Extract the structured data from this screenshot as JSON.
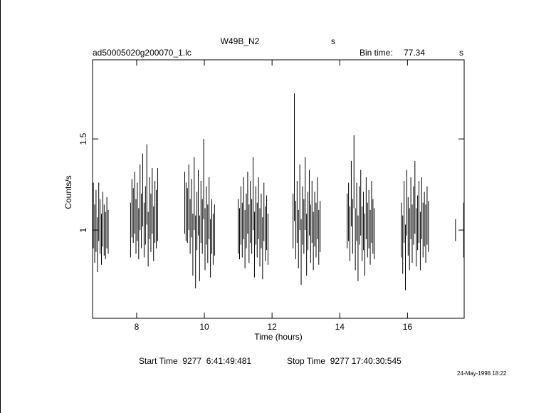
{
  "chart_data": {
    "type": "errorbar",
    "title": "W49B_N2",
    "title_unit": "s",
    "subtitle": "ad50005020g200070_1.lc",
    "bin_time_label": "Bin time:",
    "bin_time": 77.34,
    "bin_time_unit": "s",
    "xlabel": "Time (hours)",
    "ylabel": "Counts/s",
    "start_label": "Start Time  9277  6:41:49:481",
    "stop_label": "Stop Time  9277 17:40:30:545",
    "date": "24-May-1998 18:22",
    "color": "#000000",
    "xlim": [
      6.697,
      17.675
    ],
    "ylim": [
      0.516,
      1.934
    ],
    "xticks": [
      8,
      10,
      12,
      14,
      16
    ],
    "yticks": [
      1,
      1.5
    ],
    "x": [
      6.72,
      6.76,
      6.8,
      6.84,
      6.88,
      6.92,
      6.96,
      7.0,
      7.04,
      7.08,
      7.12,
      7.16,
      7.82,
      7.86,
      7.9,
      7.94,
      7.98,
      8.02,
      8.06,
      8.1,
      8.14,
      8.18,
      8.22,
      8.26,
      8.3,
      8.34,
      8.38,
      8.42,
      8.46,
      8.5,
      8.54,
      8.58,
      8.62,
      9.42,
      9.46,
      9.5,
      9.54,
      9.58,
      9.62,
      9.66,
      9.7,
      9.74,
      9.78,
      9.82,
      9.86,
      9.9,
      9.94,
      9.98,
      10.02,
      10.06,
      10.1,
      10.14,
      10.18,
      10.22,
      10.26,
      10.3,
      11.0,
      11.04,
      11.08,
      11.12,
      11.16,
      11.2,
      11.24,
      11.28,
      11.32,
      11.36,
      11.4,
      11.44,
      11.48,
      11.52,
      11.56,
      11.6,
      11.64,
      11.68,
      11.72,
      11.76,
      11.8,
      11.84,
      11.88,
      12.62,
      12.66,
      12.7,
      12.74,
      12.78,
      12.82,
      12.86,
      12.9,
      12.94,
      12.98,
      13.02,
      13.06,
      13.1,
      13.14,
      13.18,
      13.22,
      13.26,
      13.3,
      13.34,
      13.38,
      13.42,
      14.22,
      14.26,
      14.3,
      14.34,
      14.38,
      14.42,
      14.46,
      14.5,
      14.54,
      14.58,
      14.62,
      14.66,
      14.7,
      14.74,
      14.78,
      14.82,
      14.86,
      14.9,
      14.94,
      14.98,
      15.02,
      15.82,
      15.86,
      15.9,
      15.94,
      15.98,
      16.02,
      16.06,
      16.1,
      16.14,
      16.18,
      16.22,
      16.26,
      16.3,
      16.34,
      16.38,
      16.42,
      16.46,
      16.5,
      16.54,
      16.58,
      16.62,
      17.42,
      17.66
    ],
    "values": [
      1.08,
      0.98,
      1.05,
      0.92,
      1.1,
      1.02,
      0.95,
      1.06,
      1.0,
      0.97,
      1.04,
      0.99,
      1.0,
      1.12,
      1.08,
      1.15,
      1.02,
      1.1,
      0.98,
      1.18,
      1.05,
      1.22,
      1.0,
      1.08,
      1.25,
      0.95,
      1.12,
      1.04,
      1.16,
      0.98,
      1.1,
      1.06,
      1.14,
      1.15,
      1.1,
      1.08,
      1.18,
      1.02,
      1.12,
      0.92,
      1.2,
      0.88,
      1.05,
      1.15,
      0.9,
      1.1,
      1.02,
      1.28,
      0.95,
      1.08,
      0.98,
      1.12,
      0.9,
      1.02,
      0.95,
      1.0,
      1.02,
      0.98,
      1.08,
      1.0,
      1.12,
      0.95,
      1.05,
      1.15,
      0.98,
      1.1,
      1.02,
      1.2,
      0.92,
      1.08,
      1.0,
      1.12,
      0.96,
      1.05,
      0.9,
      1.1,
      0.98,
      1.04,
      0.95,
      1.05,
      1.4,
      1.0,
      1.1,
      0.95,
      1.18,
      0.88,
      1.08,
      1.02,
      1.2,
      0.92,
      1.05,
      1.15,
      0.98,
      1.1,
      0.94,
      1.06,
      1.0,
      1.12,
      0.96,
      1.02,
      1.05,
      1.1,
      0.98,
      1.2,
      1.02,
      1.32,
      0.95,
      1.1,
      0.9,
      1.08,
      1.15,
      0.98,
      1.05,
      0.92,
      1.12,
      1.0,
      1.06,
      0.96,
      1.1,
      1.02,
      0.98,
      1.0,
      0.92,
      1.1,
      0.85,
      1.15,
      1.02,
      0.95,
      1.12,
      0.98,
      1.08,
      1.18,
      0.96,
      1.04,
      1.1,
      0.94,
      1.12,
      1.0,
      1.06,
      0.98,
      1.08,
      1.02,
      1.0,
      1.0
    ],
    "errors": [
      0.18,
      0.16,
      0.17,
      0.15,
      0.16,
      0.15,
      0.14,
      0.15,
      0.14,
      0.13,
      0.14,
      0.12,
      0.15,
      0.16,
      0.15,
      0.17,
      0.15,
      0.16,
      0.14,
      0.18,
      0.15,
      0.2,
      0.15,
      0.16,
      0.22,
      0.15,
      0.17,
      0.16,
      0.18,
      0.15,
      0.17,
      0.16,
      0.2,
      0.17,
      0.16,
      0.15,
      0.18,
      0.15,
      0.16,
      0.17,
      0.2,
      0.2,
      0.16,
      0.18,
      0.18,
      0.17,
      0.15,
      0.22,
      0.17,
      0.16,
      0.16,
      0.17,
      0.16,
      0.15,
      0.14,
      0.14,
      0.15,
      0.14,
      0.16,
      0.15,
      0.17,
      0.16,
      0.15,
      0.17,
      0.16,
      0.17,
      0.15,
      0.2,
      0.18,
      0.16,
      0.15,
      0.17,
      0.16,
      0.15,
      0.17,
      0.16,
      0.15,
      0.15,
      0.14,
      0.15,
      0.35,
      0.16,
      0.17,
      0.16,
      0.18,
      0.18,
      0.16,
      0.15,
      0.2,
      0.17,
      0.16,
      0.18,
      0.16,
      0.17,
      0.16,
      0.15,
      0.15,
      0.17,
      0.15,
      0.14,
      0.15,
      0.16,
      0.15,
      0.18,
      0.15,
      0.2,
      0.17,
      0.16,
      0.18,
      0.16,
      0.18,
      0.15,
      0.16,
      0.17,
      0.17,
      0.15,
      0.16,
      0.15,
      0.17,
      0.15,
      0.14,
      0.15,
      0.16,
      0.17,
      0.18,
      0.18,
      0.16,
      0.17,
      0.17,
      0.16,
      0.16,
      0.2,
      0.16,
      0.15,
      0.17,
      0.16,
      0.17,
      0.15,
      0.15,
      0.16,
      0.16,
      0.14,
      0.06,
      0.15
    ]
  }
}
